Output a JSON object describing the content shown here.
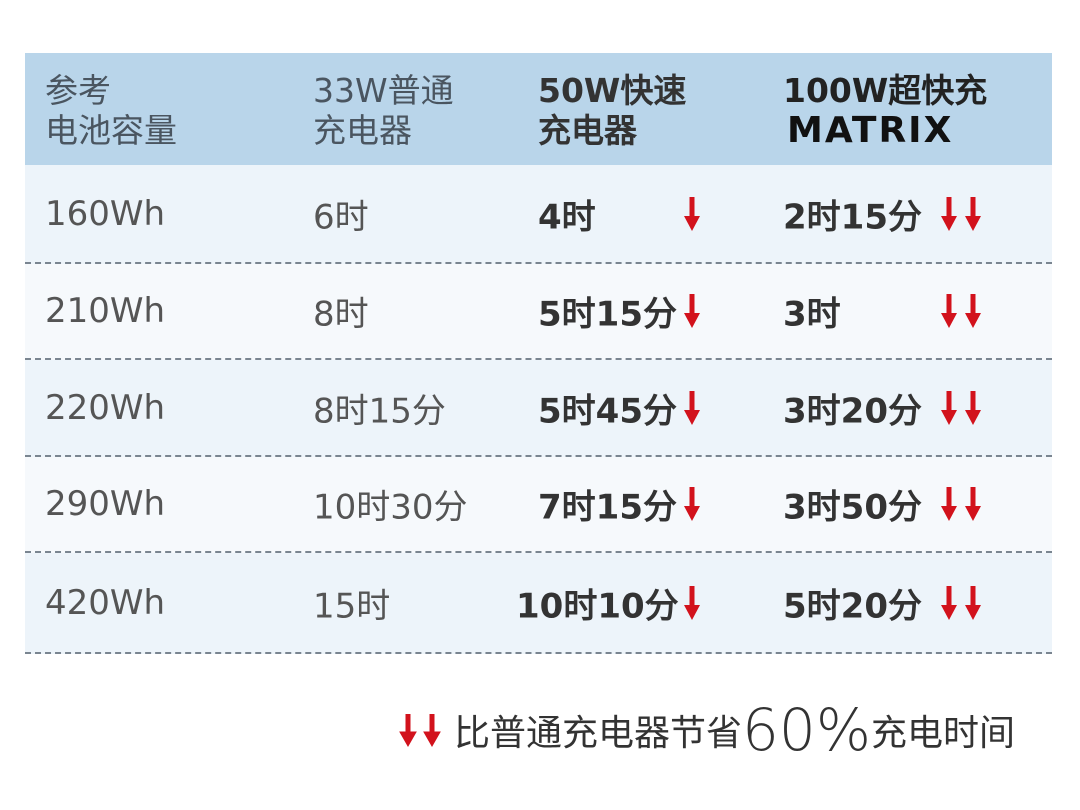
{
  "table": {
    "header": [
      [
        "参考",
        "电池容量"
      ],
      [
        "33W普通",
        "充电器"
      ],
      [
        "50W快速",
        "充电器"
      ],
      [
        "100W超快充",
        "MATRIX"
      ]
    ],
    "rows": [
      [
        "160Wh",
        "6时",
        "4时",
        "2时15分"
      ],
      [
        "210Wh",
        "8时",
        "5时15分",
        "3时"
      ],
      [
        "220Wh",
        "8时15分",
        "5时45分",
        "3时20分"
      ],
      [
        "290Wh",
        "10时30分",
        "7时15分",
        "3时50分"
      ],
      [
        "420Wh",
        "15时",
        "10时10分",
        "5时20分"
      ]
    ]
  },
  "footer": {
    "text": "比普通充电器节省",
    "highlight": "60%",
    "suffix": "充电时间"
  }
}
